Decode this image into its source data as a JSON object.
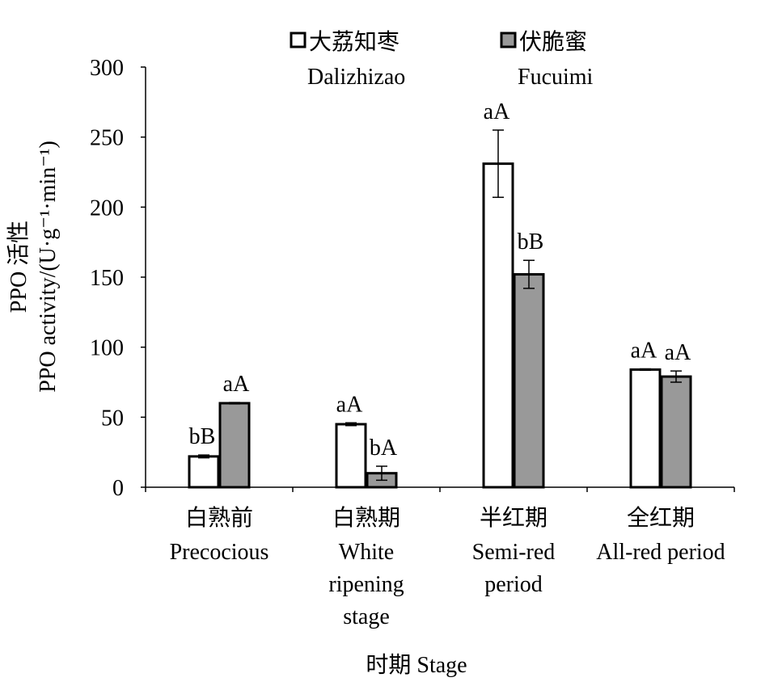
{
  "chart_data": {
    "type": "bar",
    "ylabel_line1": "PPO 活性",
    "ylabel_line2": "PPO activity/(U·g⁻¹·min⁻¹)",
    "xlabel": "时期 Stage",
    "ylim": [
      0,
      300
    ],
    "yticks": [
      "0",
      "50",
      "100",
      "150",
      "200",
      "250",
      "300"
    ],
    "grid": false,
    "legend_position": "top",
    "categories": [
      {
        "cn": "白熟前",
        "en": [
          "Precocious"
        ]
      },
      {
        "cn": "白熟期",
        "en": [
          "White",
          "ripening",
          "stage"
        ]
      },
      {
        "cn": "半红期",
        "en": [
          "Semi-red",
          "period"
        ]
      },
      {
        "cn": "全红期",
        "en": [
          "All-red period"
        ]
      }
    ],
    "series": [
      {
        "name": "大荔知枣",
        "name_en": "Dalizhizao",
        "color": "#ffffff",
        "values": [
          22,
          45,
          231,
          84
        ],
        "errors": [
          1,
          1,
          24,
          0.5
        ],
        "labels": [
          "bB",
          "aA",
          "aA",
          "aA"
        ]
      },
      {
        "name": "伏脆蜜",
        "name_en": "Fucuimi",
        "color": "#999999",
        "values": [
          60,
          10,
          152,
          79
        ],
        "errors": [
          0.5,
          5,
          10,
          4
        ],
        "labels": [
          "aA",
          "bA",
          "bB",
          "aA"
        ]
      }
    ]
  }
}
